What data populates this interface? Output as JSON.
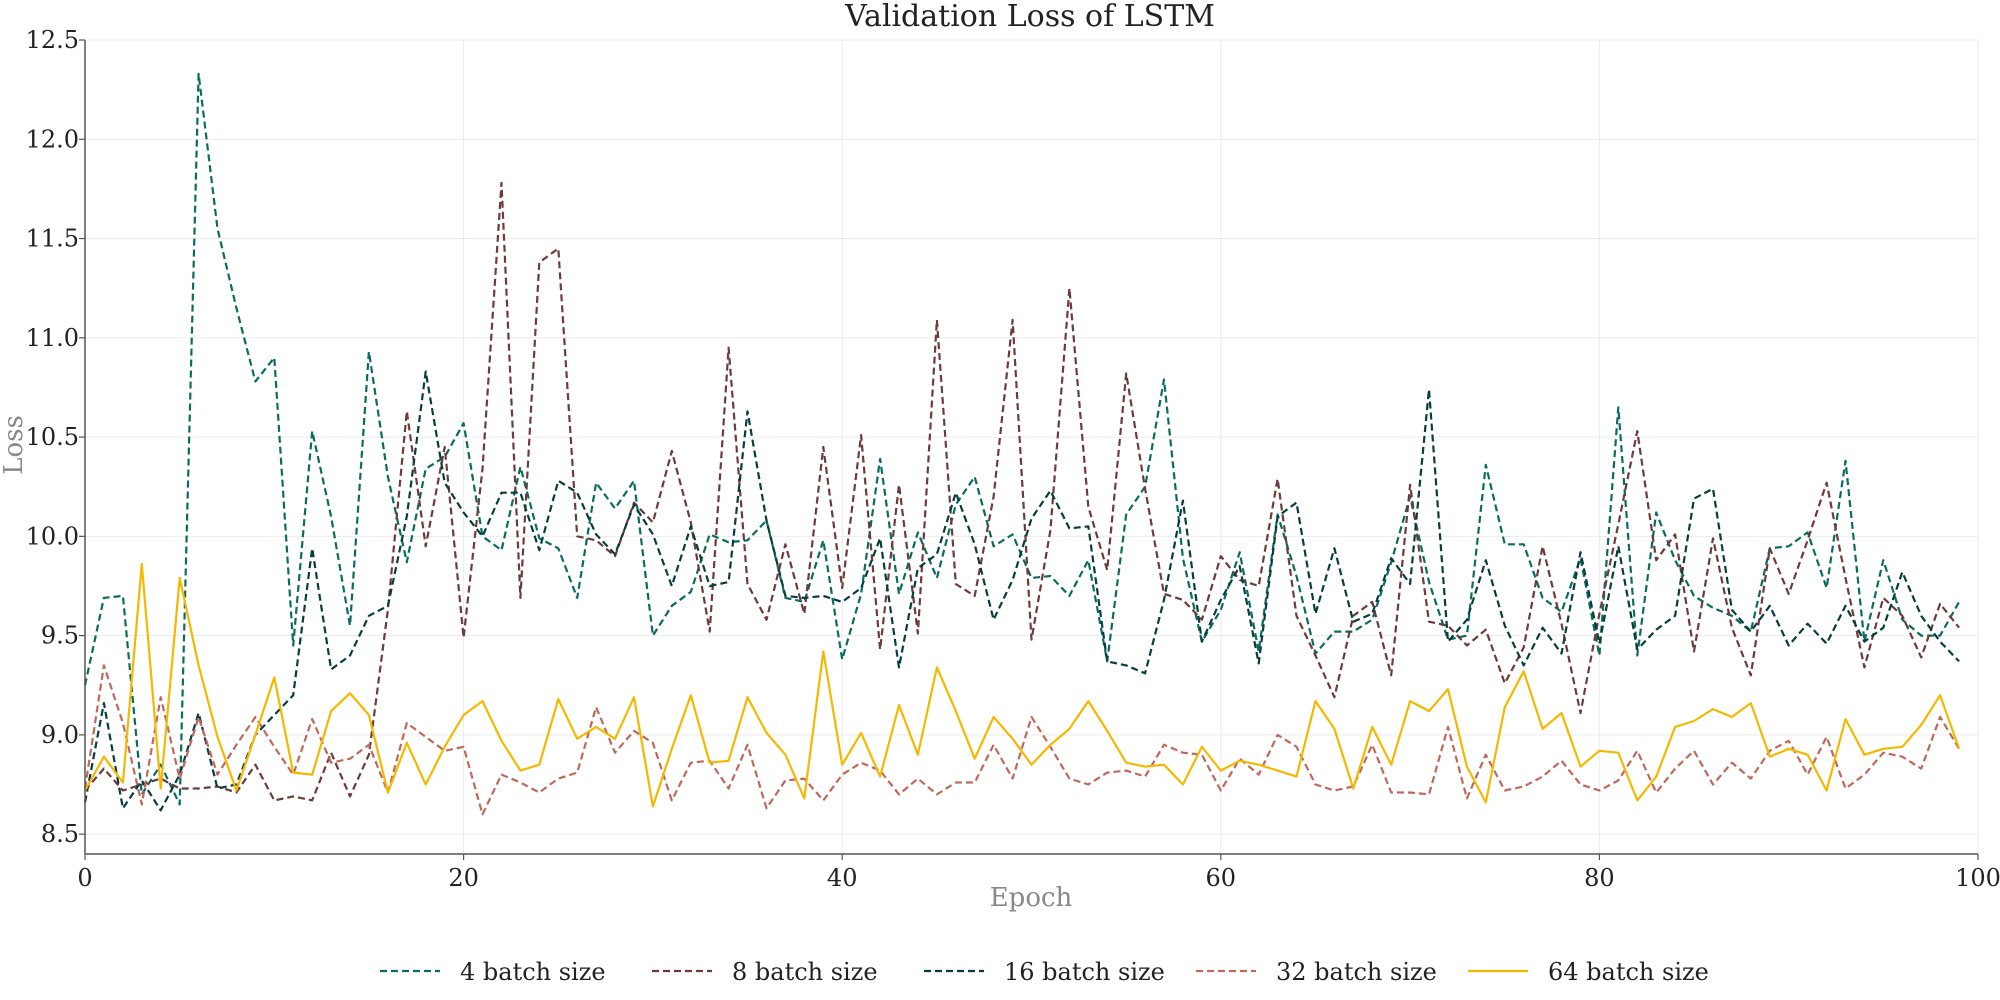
{
  "chart_data": {
    "type": "line",
    "title": "Validation Loss of LSTM",
    "xlabel": "Epoch",
    "ylabel": "Loss",
    "xlim": [
      0,
      100
    ],
    "ylim": [
      8.4,
      12.5
    ],
    "xticks": [
      0,
      20,
      40,
      60,
      80,
      100
    ],
    "xtick_labels": [
      "0",
      "20",
      "40",
      "60",
      "80",
      "100"
    ],
    "yticks": [
      8.5,
      9.0,
      9.5,
      10.0,
      10.5,
      11.0,
      11.5,
      12.0,
      12.5
    ],
    "ytick_labels": [
      "8.5",
      "9.0",
      "9.5",
      "10.0",
      "10.5",
      "11.0",
      "11.5",
      "12.0",
      "12.5"
    ],
    "grid": true,
    "legend_position": "bottom",
    "series": [
      {
        "name": "4 batch size",
        "color": "#0b6b5e",
        "dash": "dashed",
        "x": [
          0,
          1,
          2,
          3,
          4,
          5,
          6,
          7,
          8,
          9,
          10,
          11,
          12,
          13,
          14,
          15,
          16,
          17,
          18,
          19,
          20,
          21,
          22,
          23,
          24,
          25,
          26,
          27,
          28,
          29,
          30,
          31,
          32,
          33,
          34,
          35,
          36,
          37,
          38,
          39,
          40,
          41,
          42,
          43,
          44,
          45,
          46,
          47,
          48,
          49,
          50,
          51,
          52,
          53,
          54,
          55,
          56,
          57,
          58,
          59,
          60,
          61,
          62,
          63,
          64,
          65,
          66,
          67,
          68,
          69,
          70,
          71,
          72,
          73,
          74,
          75,
          76,
          77,
          78,
          79,
          80,
          81,
          82,
          83,
          84,
          85,
          86,
          87,
          88,
          89,
          90,
          91,
          92,
          93,
          94,
          95,
          96,
          97,
          98,
          99
        ],
        "values": [
          9.25,
          9.69,
          9.7,
          8.7,
          8.85,
          8.65,
          12.33,
          11.55,
          11.15,
          10.78,
          10.9,
          9.45,
          10.53,
          10.1,
          9.55,
          10.93,
          10.3,
          9.87,
          10.34,
          10.4,
          10.57,
          10.0,
          9.93,
          10.35,
          9.99,
          9.94,
          9.69,
          10.27,
          10.14,
          10.28,
          9.5,
          9.65,
          9.72,
          10.01,
          9.97,
          9.98,
          10.08,
          9.69,
          9.67,
          9.98,
          9.38,
          9.71,
          10.39,
          9.71,
          10.02,
          9.79,
          10.16,
          10.3,
          9.95,
          10.01,
          9.79,
          9.8,
          9.7,
          9.88,
          9.37,
          10.11,
          10.25,
          10.79,
          9.89,
          9.47,
          9.63,
          9.92,
          9.42,
          10.11,
          9.8,
          9.41,
          9.52,
          9.52,
          9.58,
          9.87,
          10.2,
          9.77,
          9.48,
          9.5,
          10.36,
          9.96,
          9.96,
          9.69,
          9.62,
          9.89,
          9.4,
          10.65,
          9.4,
          10.12,
          9.88,
          9.7,
          9.64,
          9.6,
          9.52,
          9.94,
          9.95,
          10.02,
          9.74,
          10.38,
          9.47,
          9.88,
          9.58,
          9.5,
          9.5,
          9.67
        ]
      },
      {
        "name": "8 batch size",
        "color": "#6e3a3a",
        "dash": "dashed",
        "x": [
          0,
          1,
          2,
          3,
          4,
          5,
          6,
          7,
          8,
          9,
          10,
          11,
          12,
          13,
          14,
          15,
          16,
          17,
          18,
          19,
          20,
          21,
          22,
          23,
          24,
          25,
          26,
          27,
          28,
          29,
          30,
          31,
          32,
          33,
          34,
          35,
          36,
          37,
          38,
          39,
          40,
          41,
          42,
          43,
          44,
          45,
          46,
          47,
          48,
          49,
          50,
          51,
          52,
          53,
          54,
          55,
          56,
          57,
          58,
          59,
          60,
          61,
          62,
          63,
          64,
          65,
          66,
          67,
          68,
          69,
          70,
          71,
          72,
          73,
          74,
          75,
          76,
          77,
          78,
          79,
          80,
          81,
          82,
          83,
          84,
          85,
          86,
          87,
          88,
          89,
          90,
          91,
          92,
          93,
          94,
          95,
          96,
          97,
          98,
          99
        ],
        "values": [
          8.72,
          8.83,
          8.72,
          8.75,
          8.78,
          8.73,
          8.73,
          8.74,
          8.71,
          8.85,
          8.67,
          8.69,
          8.67,
          8.91,
          8.69,
          8.9,
          9.63,
          10.63,
          9.95,
          10.45,
          9.49,
          10.34,
          11.78,
          9.69,
          11.38,
          11.45,
          10.0,
          9.98,
          9.9,
          10.17,
          10.07,
          10.43,
          10.07,
          9.52,
          10.95,
          9.76,
          9.58,
          9.96,
          9.61,
          10.45,
          9.74,
          10.51,
          9.43,
          10.26,
          9.51,
          11.09,
          9.76,
          9.7,
          10.2,
          11.09,
          9.48,
          10.03,
          11.25,
          10.15,
          9.83,
          10.82,
          10.24,
          9.71,
          9.68,
          9.58,
          9.9,
          9.78,
          9.75,
          10.29,
          9.6,
          9.4,
          9.19,
          9.6,
          9.67,
          9.3,
          10.26,
          9.57,
          9.55,
          9.45,
          9.53,
          9.26,
          9.44,
          9.95,
          9.56,
          9.11,
          9.61,
          10.06,
          10.53,
          9.88,
          10.01,
          9.42,
          9.99,
          9.54,
          9.3,
          9.94,
          9.71,
          9.98,
          10.27,
          9.79,
          9.34,
          9.69,
          9.6,
          9.39,
          9.66,
          9.54
        ]
      },
      {
        "name": "16 batch size",
        "color": "#083d3d",
        "dash": "dashed",
        "x": [
          0,
          1,
          2,
          3,
          4,
          5,
          6,
          7,
          8,
          9,
          10,
          11,
          12,
          13,
          14,
          15,
          16,
          17,
          18,
          19,
          20,
          21,
          22,
          23,
          24,
          25,
          26,
          27,
          28,
          29,
          30,
          31,
          32,
          33,
          34,
          35,
          36,
          37,
          38,
          39,
          40,
          41,
          42,
          43,
          44,
          45,
          46,
          47,
          48,
          49,
          50,
          51,
          52,
          53,
          54,
          55,
          56,
          57,
          58,
          59,
          60,
          61,
          62,
          63,
          64,
          65,
          66,
          67,
          68,
          69,
          70,
          71,
          72,
          73,
          74,
          75,
          76,
          77,
          78,
          79,
          80,
          81,
          82,
          83,
          84,
          85,
          86,
          87,
          88,
          89,
          90,
          91,
          92,
          93,
          94,
          95,
          96,
          97,
          98,
          99
        ],
        "values": [
          8.66,
          9.16,
          8.63,
          8.77,
          8.62,
          8.8,
          9.11,
          8.73,
          8.75,
          9.0,
          9.1,
          9.2,
          9.94,
          9.33,
          9.4,
          9.6,
          9.65,
          10.1,
          10.83,
          10.27,
          10.12,
          10.0,
          10.22,
          10.22,
          9.93,
          10.28,
          10.22,
          10.01,
          9.91,
          10.16,
          10.01,
          9.75,
          10.05,
          9.75,
          9.77,
          10.63,
          10.08,
          9.7,
          9.69,
          9.7,
          9.67,
          9.74,
          9.99,
          9.34,
          9.84,
          9.91,
          10.22,
          9.96,
          9.58,
          9.78,
          10.09,
          10.23,
          10.04,
          10.05,
          9.37,
          9.35,
          9.31,
          9.68,
          10.18,
          9.47,
          9.68,
          9.85,
          9.36,
          10.1,
          10.17,
          9.61,
          9.94,
          9.57,
          9.61,
          9.89,
          9.76,
          10.74,
          9.47,
          9.58,
          9.88,
          9.55,
          9.35,
          9.54,
          9.41,
          9.92,
          9.46,
          9.95,
          9.43,
          9.53,
          9.6,
          10.19,
          10.24,
          9.63,
          9.52,
          9.65,
          9.45,
          9.56,
          9.46,
          9.65,
          9.47,
          9.54,
          9.82,
          9.6,
          9.47,
          9.37
        ]
      },
      {
        "name": "32 batch size",
        "color": "#c0685a",
        "dash": "dashed",
        "x": [
          0,
          1,
          2,
          3,
          4,
          5,
          6,
          7,
          8,
          9,
          10,
          11,
          12,
          13,
          14,
          15,
          16,
          17,
          18,
          19,
          20,
          21,
          22,
          23,
          24,
          25,
          26,
          27,
          28,
          29,
          30,
          31,
          32,
          33,
          34,
          35,
          36,
          37,
          38,
          39,
          40,
          41,
          42,
          43,
          44,
          45,
          46,
          47,
          48,
          49,
          50,
          51,
          52,
          53,
          54,
          55,
          56,
          57,
          58,
          59,
          60,
          61,
          62,
          63,
          64,
          65,
          66,
          67,
          68,
          69,
          70,
          71,
          72,
          73,
          74,
          75,
          76,
          77,
          78,
          79,
          80,
          81,
          82,
          83,
          84,
          85,
          86,
          87,
          88,
          89,
          90,
          91,
          92,
          93,
          94,
          95,
          96,
          97,
          98,
          99
        ],
        "values": [
          8.73,
          9.35,
          9.06,
          8.65,
          9.19,
          8.78,
          9.09,
          8.8,
          8.95,
          9.09,
          8.94,
          8.8,
          9.08,
          8.86,
          8.88,
          8.95,
          8.71,
          9.06,
          8.99,
          8.92,
          8.94,
          8.6,
          8.8,
          8.76,
          8.71,
          8.78,
          8.81,
          9.14,
          8.91,
          9.02,
          8.96,
          8.67,
          8.86,
          8.87,
          8.73,
          8.95,
          8.63,
          8.77,
          8.78,
          8.67,
          8.8,
          8.86,
          8.82,
          8.7,
          8.78,
          8.7,
          8.76,
          8.76,
          8.95,
          8.78,
          9.09,
          8.94,
          8.78,
          8.75,
          8.81,
          8.82,
          8.79,
          8.95,
          8.91,
          8.9,
          8.72,
          8.88,
          8.8,
          9.0,
          8.94,
          8.75,
          8.72,
          8.74,
          8.95,
          8.71,
          8.71,
          8.7,
          9.04,
          8.68,
          8.9,
          8.72,
          8.74,
          8.79,
          8.87,
          8.75,
          8.72,
          8.77,
          8.92,
          8.71,
          8.83,
          8.92,
          8.75,
          8.86,
          8.78,
          8.92,
          8.97,
          8.8,
          8.99,
          8.73,
          8.8,
          8.91,
          8.89,
          8.83,
          9.09,
          8.93
        ]
      },
      {
        "name": "64 batch size",
        "color": "#f5b800",
        "dash": "solid",
        "x": [
          0,
          1,
          2,
          3,
          4,
          5,
          6,
          7,
          8,
          9,
          10,
          11,
          12,
          13,
          14,
          15,
          16,
          17,
          18,
          19,
          20,
          21,
          22,
          23,
          24,
          25,
          26,
          27,
          28,
          29,
          30,
          31,
          32,
          33,
          34,
          35,
          36,
          37,
          38,
          39,
          40,
          41,
          42,
          43,
          44,
          45,
          46,
          47,
          48,
          49,
          50,
          51,
          52,
          53,
          54,
          55,
          56,
          57,
          58,
          59,
          60,
          61,
          62,
          63,
          64,
          65,
          66,
          67,
          68,
          69,
          70,
          71,
          72,
          73,
          74,
          75,
          76,
          77,
          78,
          79,
          80,
          81,
          82,
          83,
          84,
          85,
          86,
          87,
          88,
          89,
          90,
          91,
          92,
          93,
          94,
          95,
          96,
          97,
          98,
          99
        ],
        "values": [
          8.72,
          8.89,
          8.76,
          9.86,
          8.73,
          9.79,
          9.35,
          8.99,
          8.72,
          9.0,
          9.29,
          8.81,
          8.8,
          9.12,
          9.21,
          9.1,
          8.71,
          8.96,
          8.75,
          8.94,
          9.1,
          9.17,
          8.97,
          8.82,
          8.85,
          9.18,
          8.98,
          9.04,
          8.98,
          9.19,
          8.64,
          8.93,
          9.2,
          8.86,
          8.87,
          9.19,
          9.01,
          8.9,
          8.68,
          9.42,
          8.85,
          9.01,
          8.79,
          9.15,
          8.9,
          9.34,
          9.12,
          8.88,
          9.09,
          8.98,
          8.85,
          8.95,
          9.03,
          9.17,
          9.02,
          8.86,
          8.84,
          8.85,
          8.75,
          8.94,
          8.82,
          8.87,
          8.85,
          8.82,
          8.79,
          9.17,
          9.03,
          8.73,
          9.04,
          8.85,
          9.17,
          9.12,
          9.23,
          8.84,
          8.66,
          9.14,
          9.32,
          9.03,
          9.11,
          8.84,
          8.92,
          8.91,
          8.67,
          8.79,
          9.04,
          9.07,
          9.13,
          9.09,
          9.16,
          8.89,
          8.93,
          8.9,
          8.72,
          9.08,
          8.9,
          8.93,
          8.94,
          9.05,
          9.2,
          8.93
        ]
      }
    ]
  }
}
